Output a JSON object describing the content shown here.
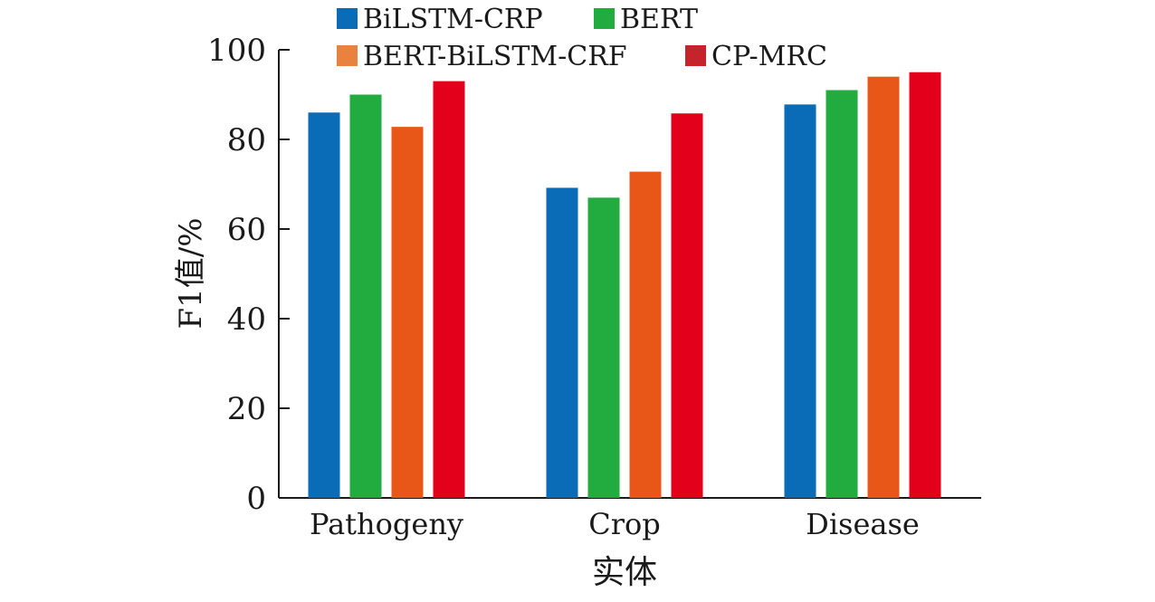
{
  "chart_data": {
    "type": "bar",
    "categories": [
      "Pathogeny",
      "Crop",
      "Disease"
    ],
    "series": [
      {
        "name": "BiLSTM-CRP",
        "color": "#0a6bb6",
        "values": [
          86,
          69.2,
          87.8
        ]
      },
      {
        "name": "BERT",
        "color": "#22ab3f",
        "values": [
          90,
          67,
          91
        ]
      },
      {
        "name": "BERT-BiLSTM-CRF",
        "color": "#e85618",
        "values": [
          82.8,
          72.8,
          94
        ]
      },
      {
        "name": "CP-MRC",
        "color": "#e3001b",
        "values": [
          93,
          85.8,
          95
        ]
      }
    ],
    "legend_colors": [
      "#0a6bb6",
      "#22ab3f",
      "#e9813f",
      "#c6242b"
    ],
    "xlabel": "实体",
    "ylabel": "F1值/%",
    "ylim": [
      0,
      100
    ],
    "yticks": [
      0,
      20,
      40,
      60,
      80,
      100
    ],
    "grid": false,
    "legend_position": "top"
  }
}
